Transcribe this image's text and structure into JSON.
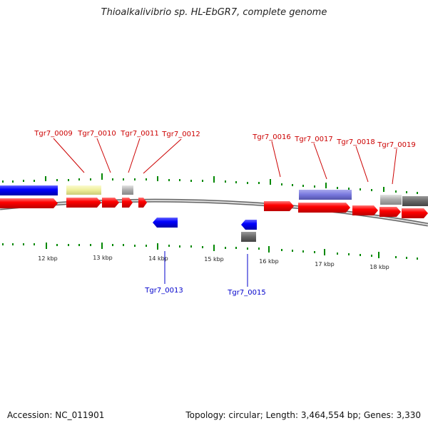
{
  "title": "Thioalkalivibrio sp. HL-EbGR7, complete genome",
  "footer": {
    "accession": "Accession: NC_011901",
    "stats": "Topology: circular; Length: 3,464,554 bp; Genes: 3,330"
  },
  "colors": {
    "cds": "#ff0000",
    "cds_reverse": "#0000ff",
    "pseudo": "#eeee99",
    "rna": "#aaaaaa",
    "rna_dark": "#666666",
    "purple": "#7777dd",
    "tick": "#008800",
    "backbone": "#999999"
  },
  "scale_labels": [
    "12 kbp",
    "13 kbp",
    "14 kbp",
    "15 kbp",
    "16 kbp",
    "17 kbp",
    "18 kbp"
  ],
  "gene_labels_forward": [
    "Tgr7_0009",
    "Tgr7_0010",
    "Tgr7_0011",
    "Tgr7_0012",
    "Tgr7_0016",
    "Tgr7_0017",
    "Tgr7_0018",
    "Tgr7_0019"
  ],
  "gene_labels_reverse": [
    "Tgr7_0013",
    "Tgr7_0015"
  ]
}
